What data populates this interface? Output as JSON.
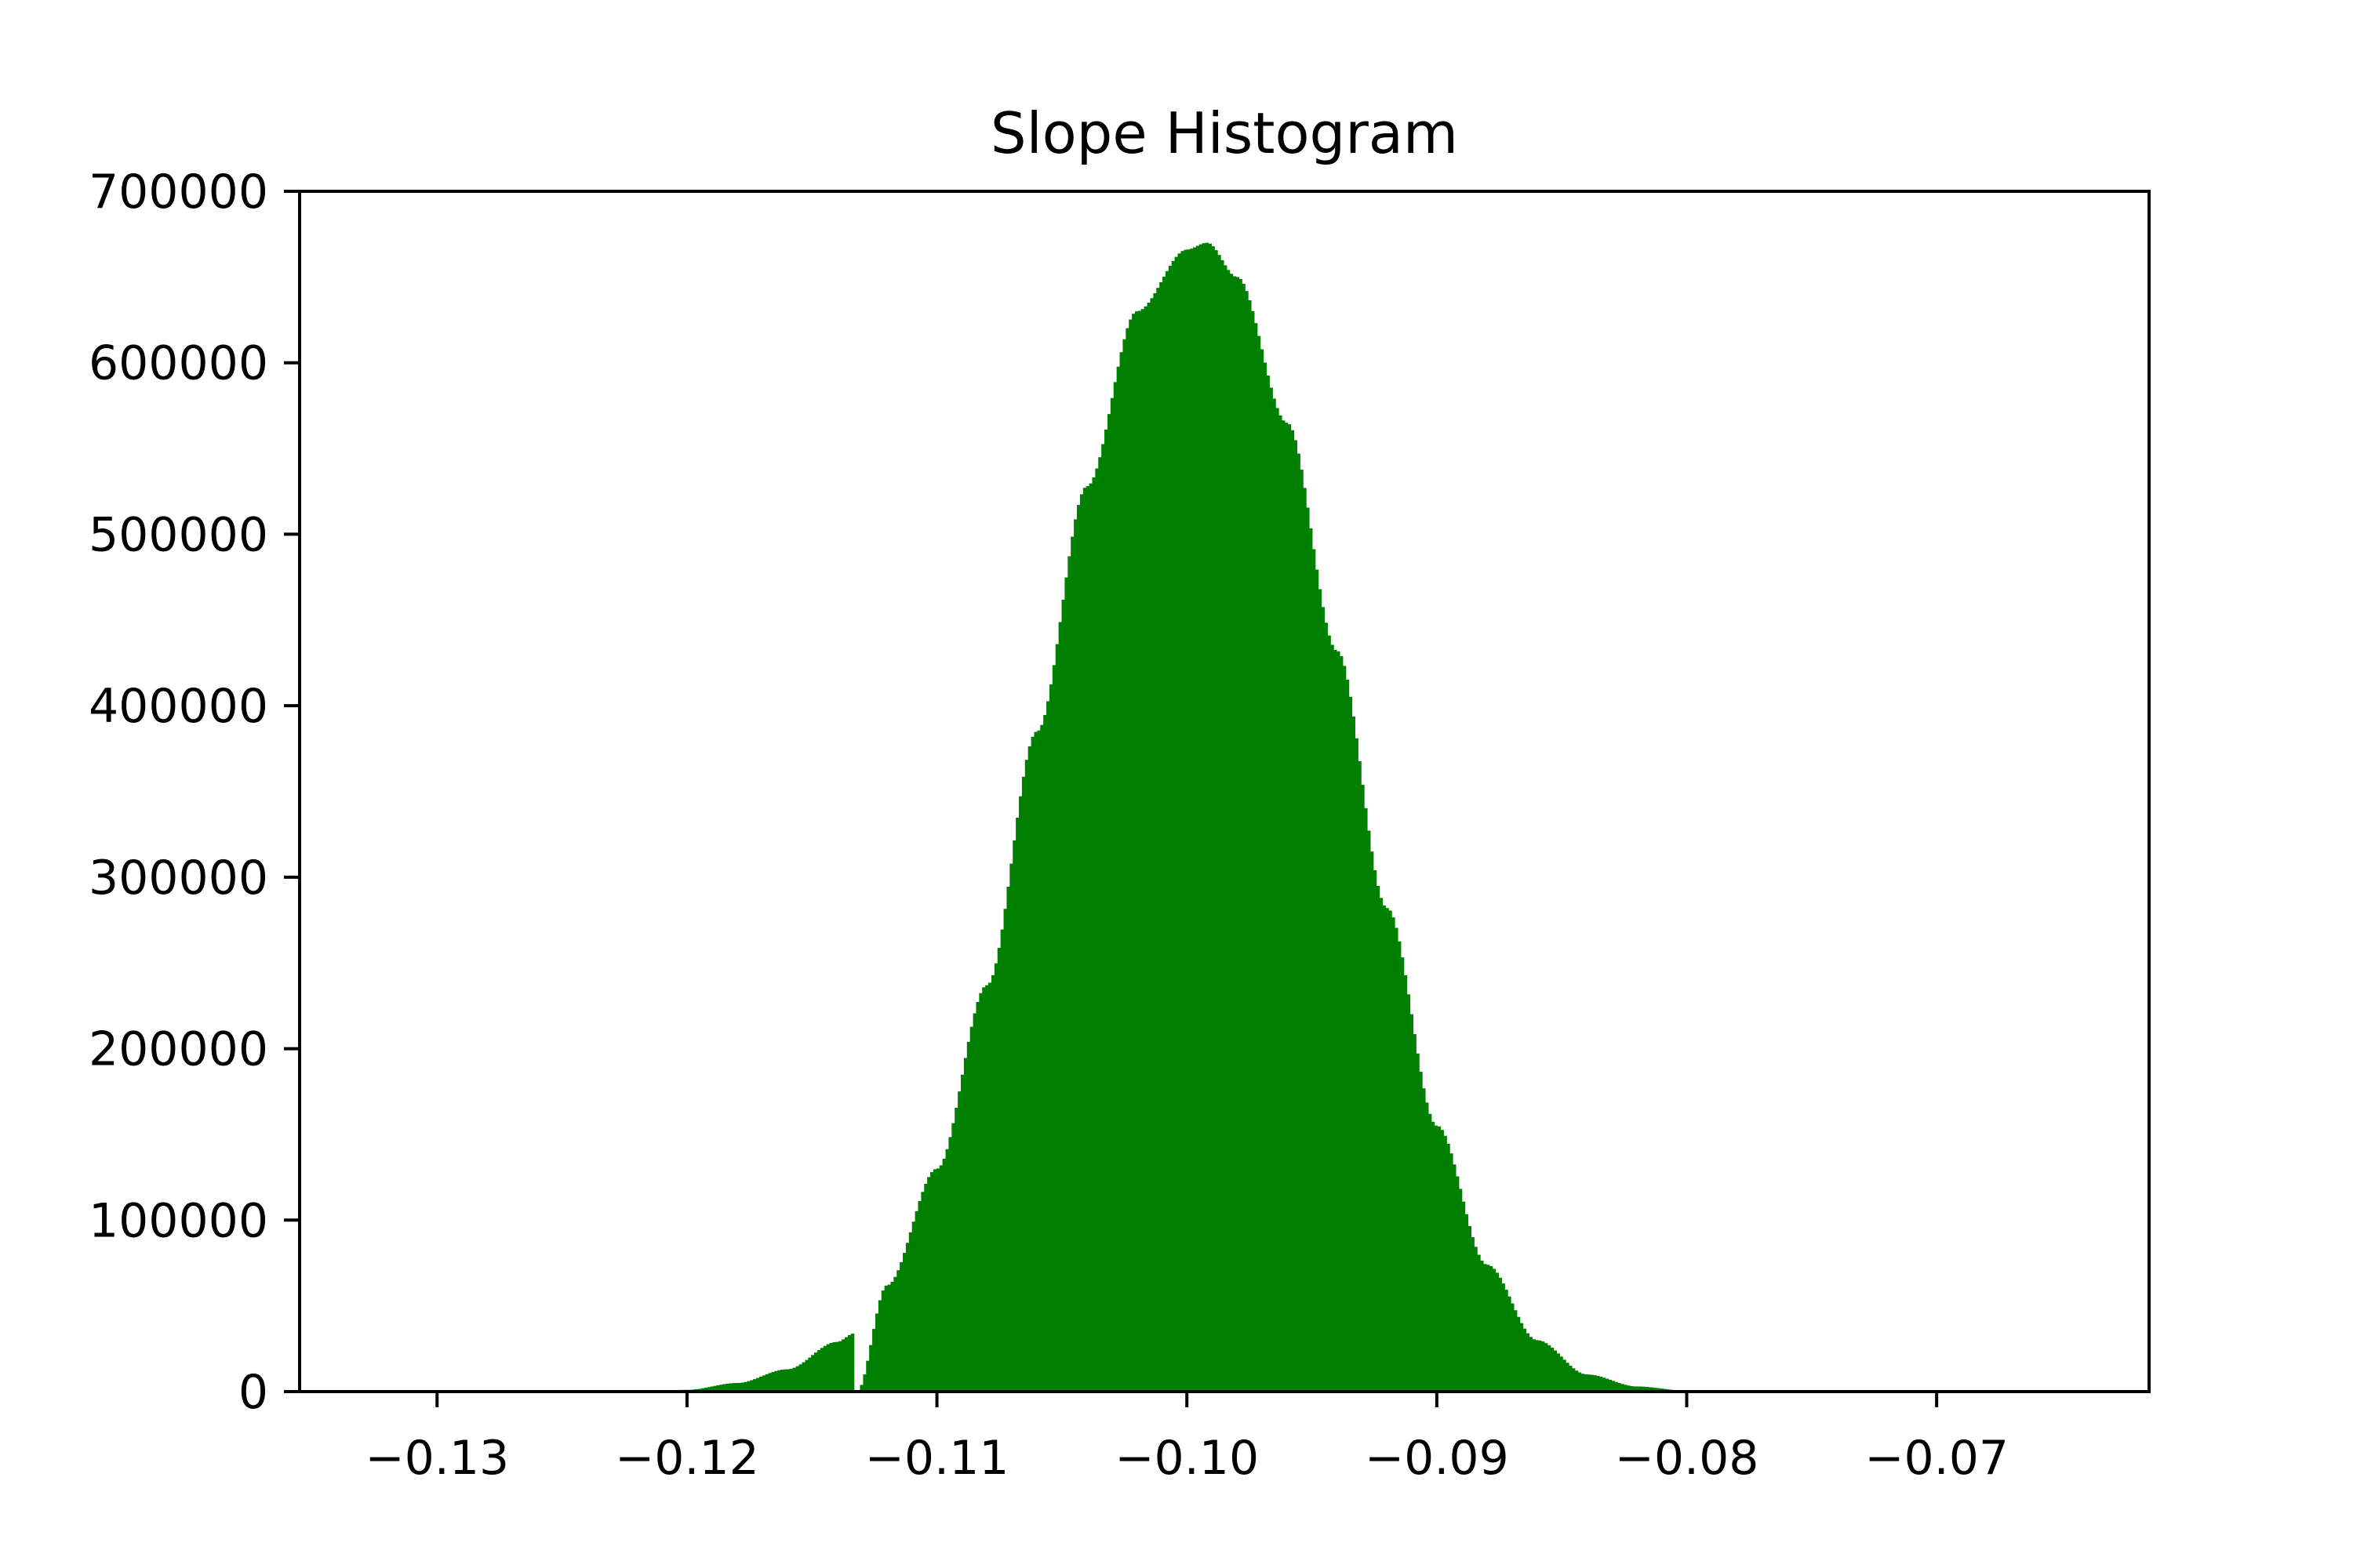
{
  "chart_data": {
    "type": "bar",
    "title": "Slope Histogram",
    "xlabel": "",
    "ylabel": "",
    "xlim": [
      -0.1355,
      -0.0615
    ],
    "ylim": [
      0,
      700000
    ],
    "xticks": [
      -0.13,
      -0.12,
      -0.11,
      -0.1,
      -0.09,
      -0.08,
      -0.07
    ],
    "xtick_labels": [
      "−0.13",
      "−0.12",
      "−0.11",
      "−0.10",
      "−0.09",
      "−0.08",
      "−0.07"
    ],
    "yticks": [
      0,
      100000,
      200000,
      300000,
      400000,
      500000,
      600000,
      700000
    ],
    "ytick_labels": [
      "0",
      "100000",
      "200000",
      "300000",
      "400000",
      "500000",
      "600000",
      "700000"
    ],
    "bar_color": "#008000",
    "grid": false,
    "bins": {
      "x": [
        -0.122,
        -0.12,
        -0.118,
        -0.116,
        -0.114,
        -0.1133,
        -0.1132,
        -0.112,
        -0.11,
        -0.108,
        -0.106,
        -0.104,
        -0.102,
        -0.1,
        -0.0992,
        -0.098,
        -0.096,
        -0.094,
        -0.092,
        -0.09,
        -0.088,
        -0.086,
        -0.084,
        -0.082,
        -0.08,
        -0.078
      ],
      "values": [
        0,
        1000,
        5000,
        13000,
        29000,
        34000,
        0,
        62000,
        130000,
        237000,
        385000,
        528000,
        630000,
        666000,
        670000,
        650000,
        565000,
        432000,
        282000,
        155000,
        74000,
        30000,
        10000,
        3000,
        500,
        0
      ]
    }
  }
}
